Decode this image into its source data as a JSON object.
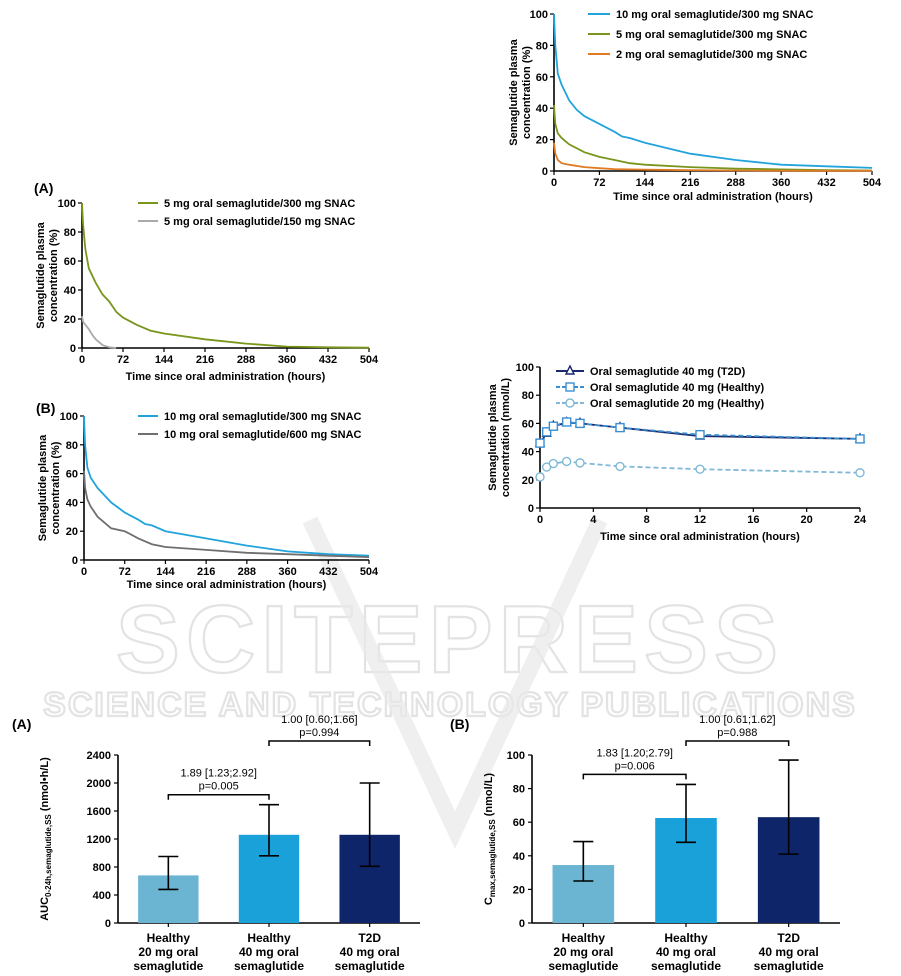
{
  "watermark": {
    "line1": "SCITEPRESS",
    "line2": "SCIENCE AND TECHNOLOGY PUBLICATIONS"
  },
  "chart_data": [
    {
      "id": "top-right",
      "type": "line",
      "panel_label": "",
      "xlabel": "Time since oral administration (hours)",
      "ylabel": [
        "Semaglutide plasma",
        "concentration (%)"
      ],
      "xlim": [
        0,
        504
      ],
      "ylim": [
        0,
        100
      ],
      "xticks": [
        0,
        72,
        144,
        216,
        288,
        360,
        432,
        504
      ],
      "yticks": [
        0,
        20,
        40,
        60,
        80,
        100
      ],
      "legend_position": "top-right",
      "series": [
        {
          "name": "10 mg oral semaglutide/300 mg SNAC",
          "color": "#21a3dc",
          "x": [
            0,
            2,
            6,
            12,
            24,
            36,
            48,
            72,
            96,
            108,
            120,
            144,
            216,
            288,
            360,
            432,
            504
          ],
          "y": [
            100,
            80,
            62,
            55,
            45,
            39,
            35,
            30,
            25,
            22,
            21,
            18,
            11,
            7,
            4,
            3,
            2
          ]
        },
        {
          "name": "5 mg oral semaglutide/300 mg SNAC",
          "color": "#78951c",
          "x": [
            0,
            2,
            6,
            12,
            24,
            48,
            72,
            96,
            120,
            144,
            216,
            288,
            360,
            432,
            504
          ],
          "y": [
            42,
            30,
            24,
            21,
            17,
            12,
            9,
            7,
            5,
            4,
            2.5,
            1.5,
            1,
            0.5,
            0.3
          ]
        },
        {
          "name": "2 mg oral semaglutide/300 mg SNAC",
          "color": "#e07b22",
          "x": [
            0,
            2,
            6,
            12,
            24,
            48,
            72,
            96,
            144,
            216,
            288,
            360,
            432,
            504
          ],
          "y": [
            18,
            11,
            7,
            5,
            4,
            2.5,
            1.8,
            1.2,
            0.8,
            0.5,
            0.3,
            0.2,
            0.1,
            0.1
          ]
        }
      ]
    },
    {
      "id": "left-A",
      "type": "line",
      "panel_label": "(A)",
      "xlabel": "Time since oral administration (hours)",
      "ylabel": [
        "Semaglutide plasma",
        "concentration (%)"
      ],
      "xlim": [
        0,
        504
      ],
      "ylim": [
        0,
        100
      ],
      "xticks": [
        0,
        72,
        144,
        216,
        288,
        360,
        432,
        504
      ],
      "yticks": [
        0,
        20,
        40,
        60,
        80,
        100
      ],
      "legend_position": "top-right",
      "series": [
        {
          "name": "5 mg oral semaglutide/300 mg SNAC",
          "color": "#78951c",
          "x": [
            0,
            2,
            6,
            12,
            24,
            36,
            48,
            60,
            72,
            96,
            120,
            144,
            216,
            288,
            360,
            432,
            504
          ],
          "y": [
            100,
            85,
            68,
            55,
            45,
            37,
            32,
            25,
            21,
            16,
            12,
            10,
            6,
            3,
            1,
            0.5,
            0.2
          ]
        },
        {
          "name": "5 mg oral semaglutide/150 mg SNAC",
          "color": "#a9a9a9",
          "x": [
            0,
            2,
            6,
            12,
            18,
            24,
            30,
            36,
            48,
            60
          ],
          "y": [
            22,
            18,
            16,
            13,
            9,
            6,
            4,
            2,
            0.5,
            0
          ]
        }
      ]
    },
    {
      "id": "left-B",
      "type": "line",
      "panel_label": "(B)",
      "xlabel": "Time since oral administration (hours)",
      "ylabel": [
        "Semaglutide plasma",
        "concentration (%)"
      ],
      "xlim": [
        0,
        504
      ],
      "ylim": [
        0,
        100
      ],
      "xticks": [
        0,
        72,
        144,
        216,
        288,
        360,
        432,
        504
      ],
      "yticks": [
        0,
        20,
        40,
        60,
        80,
        100
      ],
      "legend_position": "top-right",
      "series": [
        {
          "name": "10 mg oral semaglutide/300 mg SNAC",
          "color": "#21a3dc",
          "x": [
            0,
            2,
            6,
            12,
            24,
            36,
            48,
            72,
            96,
            108,
            120,
            144,
            216,
            288,
            360,
            432,
            504
          ],
          "y": [
            100,
            80,
            64,
            57,
            50,
            45,
            40,
            33,
            28,
            25,
            24,
            20,
            15,
            10,
            6,
            4,
            3
          ]
        },
        {
          "name": "10 mg oral semaglutide/600 mg SNAC",
          "color": "#6f6f6f",
          "x": [
            0,
            2,
            6,
            12,
            24,
            36,
            48,
            72,
            96,
            120,
            144,
            216,
            288,
            360,
            432,
            504
          ],
          "y": [
            62,
            50,
            42,
            37,
            30,
            26,
            22,
            20,
            15,
            11,
            9,
            7,
            5,
            4,
            3,
            2
          ]
        }
      ]
    },
    {
      "id": "right-mid",
      "type": "line",
      "panel_label": "",
      "xlabel": "Time since oral administration (hours)",
      "ylabel": [
        "Semaglutide plasma",
        "concentration (nmol/L)"
      ],
      "xlim": [
        0,
        24
      ],
      "ylim": [
        0,
        100
      ],
      "xticks": [
        0,
        4,
        8,
        12,
        16,
        20,
        24
      ],
      "yticks": [
        0,
        20,
        40,
        60,
        80,
        100
      ],
      "legend_position": "top-right",
      "series": [
        {
          "name": "Oral semaglutide 40 mg (T2D)",
          "color": "#1a2a6c",
          "dash": false,
          "marker": "triangle",
          "x": [
            0,
            0.5,
            1,
            2,
            3,
            6,
            12,
            24
          ],
          "y": [
            46,
            53,
            58,
            60.5,
            60,
            57,
            51,
            49
          ]
        },
        {
          "name": "Oral semaglutide 40 mg (Healthy)",
          "color": "#3b8fd0",
          "dash": true,
          "marker": "square",
          "x": [
            0,
            0.5,
            1,
            2,
            3,
            6,
            12,
            24
          ],
          "y": [
            46,
            54,
            58,
            61,
            60,
            57,
            52,
            49
          ]
        },
        {
          "name": "Oral semaglutide 20 mg (Healthy)",
          "color": "#7fb8d8",
          "dash": true,
          "marker": "circle",
          "x": [
            0,
            0.5,
            1,
            2,
            3,
            6,
            12,
            24
          ],
          "y": [
            22,
            29,
            31.5,
            33,
            32,
            29.5,
            27.5,
            25
          ]
        }
      ]
    },
    {
      "id": "bar-A",
      "type": "bar",
      "panel_label": "(A)",
      "ylabel": "AUC0-24h,semaglutide,SS (nmol•h/L)",
      "ylabel_parts": [
        "AUC",
        "0-24h,semaglutide,SS",
        " (nmol•h/L)"
      ],
      "ylim": [
        0,
        2400
      ],
      "yticks": [
        0,
        400,
        800,
        1200,
        1600,
        2000,
        2400
      ],
      "categories": [
        [
          "Healthy",
          "20 mg oral",
          "semaglutide"
        ],
        [
          "Healthy",
          "40 mg oral",
          "semaglutide"
        ],
        [
          "T2D",
          "40 mg oral",
          "semaglutide"
        ]
      ],
      "values": [
        680,
        1260,
        1260
      ],
      "err_low": [
        480,
        960,
        810
      ],
      "err_high": [
        950,
        1690,
        2000
      ],
      "colors": [
        "#6bb5d3",
        "#1aa1da",
        "#0f2569"
      ],
      "comparisons": [
        {
          "from": 0,
          "to": 1,
          "line1": "1.89 [1.23;2.92]",
          "line2": "p=0.005"
        },
        {
          "from": 1,
          "to": 2,
          "line1": "1.00 [0.60;1.66]",
          "line2": "p=0.994"
        }
      ]
    },
    {
      "id": "bar-B",
      "type": "bar",
      "panel_label": "(B)",
      "ylabel": "Cmax,semaglutide,SS (nmol/L)",
      "ylabel_parts": [
        "C",
        "max,semaglutide,SS",
        " (nmol/L)"
      ],
      "ylim": [
        0,
        100
      ],
      "yticks": [
        0,
        20,
        40,
        60,
        80,
        100
      ],
      "categories": [
        [
          "Healthy",
          "20 mg oral",
          "semaglutide"
        ],
        [
          "Healthy",
          "40 mg oral",
          "semaglutide"
        ],
        [
          "T2D",
          "40 mg oral",
          "semaglutide"
        ]
      ],
      "values": [
        34.5,
        62.5,
        63
      ],
      "err_low": [
        25,
        48,
        41
      ],
      "err_high": [
        48.5,
        82.5,
        97
      ],
      "colors": [
        "#6bb5d3",
        "#1aa1da",
        "#0f2569"
      ],
      "comparisons": [
        {
          "from": 0,
          "to": 1,
          "line1": "1.83 [1.20;2.79]",
          "line2": "p=0.006"
        },
        {
          "from": 1,
          "to": 2,
          "line1": "1.00 [0.61;1.62]",
          "line2": "p=0.988"
        }
      ]
    }
  ]
}
